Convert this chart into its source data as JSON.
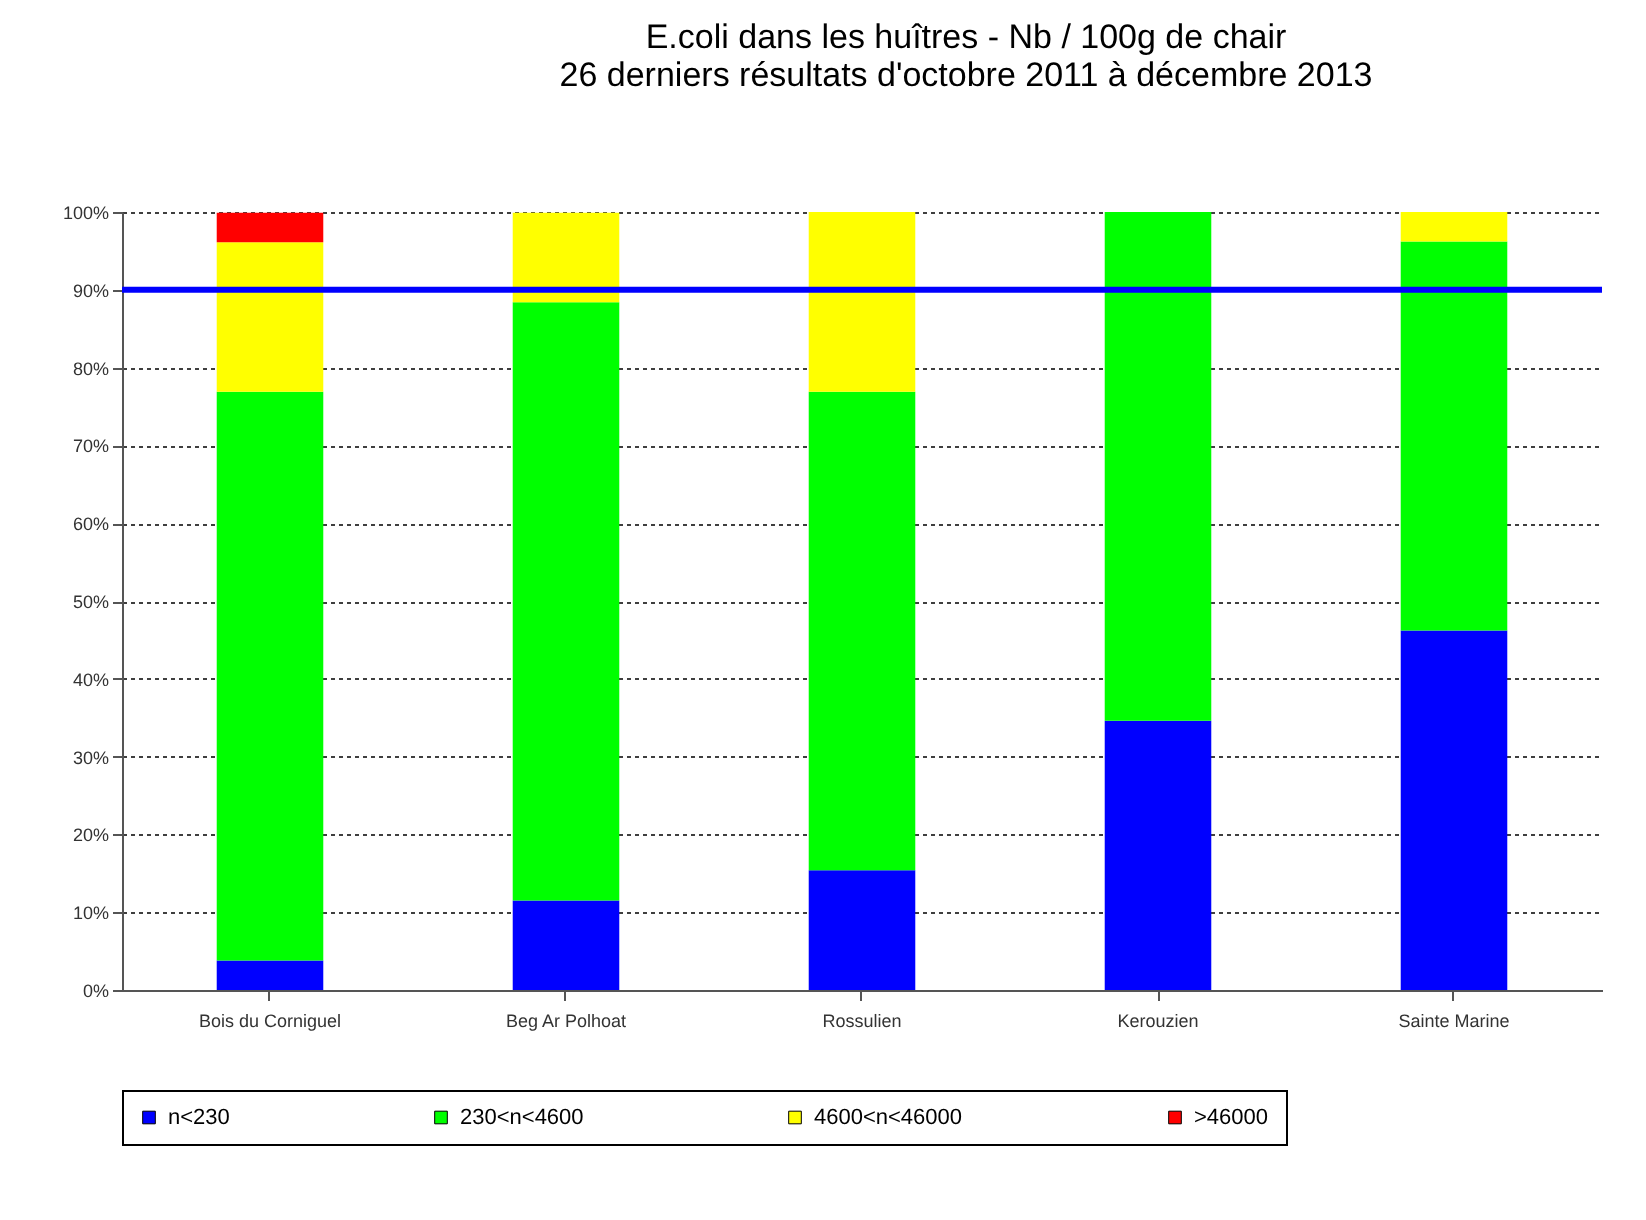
{
  "chart_data": {
    "type": "bar",
    "title": [
      "E.coli dans les huîtres - Nb / 100g de chair",
      "26 derniers résultats d'octobre 2011 à décembre 2013"
    ],
    "stacked": true,
    "categories": [
      "Bois du Corniguel",
      "Beg Ar Polhoat",
      "Rossulien",
      "Kerouzien",
      "Sainte Marine"
    ],
    "series": [
      {
        "name": "n<230",
        "color": "#0000ff",
        "values": [
          3.8,
          11.5,
          15.4,
          34.6,
          46.2
        ]
      },
      {
        "name": "230<n<4600",
        "color": "#00ff00",
        "values": [
          73.1,
          76.9,
          61.5,
          65.4,
          50.0
        ]
      },
      {
        "name": "4600<n<46000",
        "color": "#ffff00",
        "values": [
          19.2,
          11.5,
          23.1,
          0,
          3.8
        ]
      },
      {
        "name": ">46000",
        "color": "#ff0000",
        "values": [
          3.8,
          0,
          0,
          0,
          0
        ]
      }
    ],
    "ylim": [
      0,
      100
    ],
    "yticks": [
      {
        "value": 0,
        "label": "0%"
      },
      {
        "value": 10,
        "label": "10%"
      },
      {
        "value": 20,
        "label": "20%"
      },
      {
        "value": 30,
        "label": "30%"
      },
      {
        "value": 40,
        "label": "40%"
      },
      {
        "value": 50,
        "label": "50%"
      },
      {
        "value": 60,
        "label": "60%"
      },
      {
        "value": 70,
        "label": "70%"
      },
      {
        "value": 80,
        "label": "80%"
      },
      {
        "value": 90,
        "label": "90%"
      },
      {
        "value": 100,
        "label": "100%"
      }
    ],
    "ref_lines": [
      {
        "axis": "y",
        "value": 90,
        "color": "#0000ff"
      }
    ],
    "grid": "y",
    "legend": "bottom"
  }
}
